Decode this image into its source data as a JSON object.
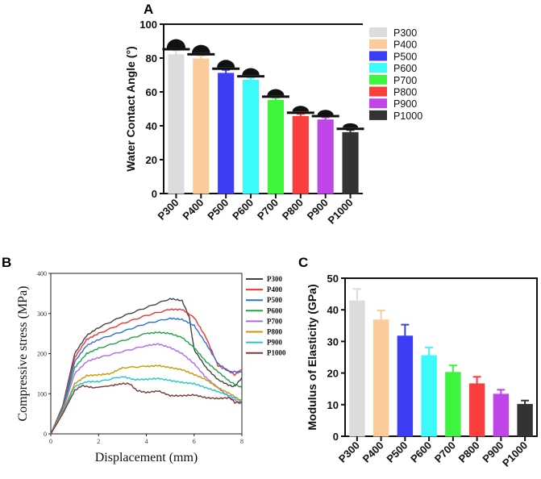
{
  "chart_data": [
    {
      "panel": "A",
      "type": "bar",
      "categories": [
        "P300",
        "P400",
        "P500",
        "P600",
        "P700",
        "P800",
        "P900",
        "P1000"
      ],
      "values": [
        82,
        79.5,
        71,
        67,
        55,
        45.5,
        43.5,
        36
      ],
      "errors": [
        2.5,
        2,
        2,
        1.5,
        1.5,
        1.5,
        1.5,
        1.5
      ],
      "colors": [
        "#dcdcdc",
        "#fccb9a",
        "#3d3df5",
        "#3dfafa",
        "#3ef53e",
        "#fa3e3e",
        "#bf45e6",
        "#333333"
      ],
      "xlabel": "",
      "ylabel": "Water Contact Angle (°)",
      "ylim": [
        0,
        100
      ],
      "yticks": [
        "0",
        "20",
        "40",
        "60",
        "80",
        "100"
      ],
      "legend": [
        "P300",
        "P400",
        "P500",
        "P600",
        "P700",
        "P800",
        "P900",
        "P1000"
      ],
      "legend_position": "right"
    },
    {
      "panel": "B",
      "type": "line",
      "xlabel": "Displacement (mm)",
      "ylabel": "Compressive stress (MPa)",
      "xlim": [
        0,
        8
      ],
      "ylim": [
        0,
        400
      ],
      "xticks": [
        "0",
        "2",
        "4",
        "6",
        "8"
      ],
      "yticks": [
        "0",
        "100",
        "200",
        "300",
        "400"
      ],
      "legend_position": "right",
      "series": [
        {
          "name": "P300",
          "color": "#444444",
          "points": [
            [
              0,
              0
            ],
            [
              0.5,
              70
            ],
            [
              1,
              200
            ],
            [
              1.5,
              245
            ],
            [
              2,
              265
            ],
            [
              3,
              293
            ],
            [
              4,
              315
            ],
            [
              5,
              337
            ],
            [
              5.5,
              332
            ],
            [
              5.8,
              290
            ],
            [
              6,
              210
            ],
            [
              6.5,
              165
            ],
            [
              7,
              135
            ],
            [
              7.5,
              120
            ],
            [
              7.7,
              118
            ],
            [
              8,
              140
            ]
          ]
        },
        {
          "name": "P400",
          "color": "#f03232",
          "points": [
            [
              0,
              0
            ],
            [
              0.5,
              68
            ],
            [
              1,
              190
            ],
            [
              1.5,
              235
            ],
            [
              2,
              250
            ],
            [
              3,
              275
            ],
            [
              4,
              295
            ],
            [
              5,
              310
            ],
            [
              5.5,
              310
            ],
            [
              6,
              290
            ],
            [
              6.5,
              240
            ],
            [
              7,
              170
            ],
            [
              7.5,
              155
            ],
            [
              7.7,
              147
            ],
            [
              8,
              160
            ]
          ]
        },
        {
          "name": "P500",
          "color": "#2a6ee6",
          "points": [
            [
              0,
              0
            ],
            [
              0.5,
              65
            ],
            [
              1,
              180
            ],
            [
              1.5,
              220
            ],
            [
              2,
              235
            ],
            [
              3,
              255
            ],
            [
              4,
              275
            ],
            [
              5,
              288
            ],
            [
              5.5,
              285
            ],
            [
              6,
              270
            ],
            [
              6.5,
              225
            ],
            [
              7,
              175
            ],
            [
              7.5,
              155
            ],
            [
              8,
              155
            ]
          ]
        },
        {
          "name": "P600",
          "color": "#25a04a",
          "points": [
            [
              0,
              0
            ],
            [
              0.5,
              62
            ],
            [
              1,
              165
            ],
            [
              1.5,
              200
            ],
            [
              2,
              213
            ],
            [
              3,
              232
            ],
            [
              4,
              250
            ],
            [
              4.5,
              253
            ],
            [
              5,
              250
            ],
            [
              5.5,
              240
            ],
            [
              6,
              215
            ],
            [
              6.5,
              180
            ],
            [
              7,
              155
            ],
            [
              7.5,
              130
            ],
            [
              8,
              115
            ]
          ]
        },
        {
          "name": "P700",
          "color": "#b468e6",
          "points": [
            [
              0,
              0
            ],
            [
              0.5,
              58
            ],
            [
              1,
              150
            ],
            [
              1.5,
              180
            ],
            [
              2,
              190
            ],
            [
              3,
              205
            ],
            [
              4,
              220
            ],
            [
              4.5,
              224
            ],
            [
              5,
              215
            ],
            [
              5.5,
              200
            ],
            [
              6,
              175
            ],
            [
              6.5,
              140
            ],
            [
              7,
              115
            ],
            [
              7.5,
              90
            ],
            [
              8,
              75
            ]
          ]
        },
        {
          "name": "P800",
          "color": "#cc9900",
          "points": [
            [
              0,
              0
            ],
            [
              0.5,
              55
            ],
            [
              1,
              125
            ],
            [
              1.5,
              145
            ],
            [
              2,
              147
            ],
            [
              2.5,
              150
            ],
            [
              3,
              165
            ],
            [
              4,
              168
            ],
            [
              4.5,
              170
            ],
            [
              5,
              165
            ],
            [
              5.5,
              160
            ],
            [
              6,
              148
            ],
            [
              6.5,
              135
            ],
            [
              7,
              115
            ],
            [
              7.5,
              100
            ],
            [
              8,
              82
            ]
          ]
        },
        {
          "name": "P900",
          "color": "#22c8c8",
          "points": [
            [
              0,
              0
            ],
            [
              0.5,
              52
            ],
            [
              1,
              118
            ],
            [
              1.5,
              130
            ],
            [
              2,
              130
            ],
            [
              3,
              143
            ],
            [
              3.5,
              135
            ],
            [
              4,
              136
            ],
            [
              4.5,
              138
            ],
            [
              5,
              133
            ],
            [
              5.5,
              128
            ],
            [
              6,
              125
            ],
            [
              6.5,
              115
            ],
            [
              7,
              105
            ],
            [
              7.5,
              95
            ],
            [
              8,
              80
            ]
          ]
        },
        {
          "name": "P1000",
          "color": "#7a3a32",
          "points": [
            [
              0,
              0
            ],
            [
              0.5,
              50
            ],
            [
              1,
              108
            ],
            [
              1.3,
              120
            ],
            [
              1.8,
              115
            ],
            [
              2.5,
              120
            ],
            [
              3,
              125
            ],
            [
              3.3,
              125
            ],
            [
              3.6,
              108
            ],
            [
              4,
              103
            ],
            [
              4.5,
              107
            ],
            [
              5,
              95
            ],
            [
              5.5,
              95
            ],
            [
              6,
              97
            ],
            [
              6.5,
              90
            ],
            [
              7,
              88
            ],
            [
              7.5,
              90
            ],
            [
              7.7,
              78
            ],
            [
              8,
              78
            ]
          ]
        }
      ]
    },
    {
      "panel": "C",
      "type": "bar",
      "categories": [
        "P300",
        "P400",
        "P500",
        "P600",
        "P700",
        "P800",
        "P900",
        "P1000"
      ],
      "values": [
        42.8,
        36.8,
        31.7,
        25.5,
        20.2,
        16.6,
        13.3,
        10.1
      ],
      "errors": [
        3.8,
        3,
        3.6,
        2.6,
        2.2,
        2.2,
        1.4,
        1.2
      ],
      "colors": [
        "#dcdcdc",
        "#fccb9a",
        "#3d3df5",
        "#3dfafa",
        "#3ef53e",
        "#fa3e3e",
        "#bf45e6",
        "#333333"
      ],
      "xlabel": "",
      "ylabel": "Modulus of Elasticity (GPa)",
      "ylim": [
        0,
        50
      ],
      "yticks": [
        "0",
        "10",
        "20",
        "30",
        "40",
        "50"
      ]
    }
  ]
}
